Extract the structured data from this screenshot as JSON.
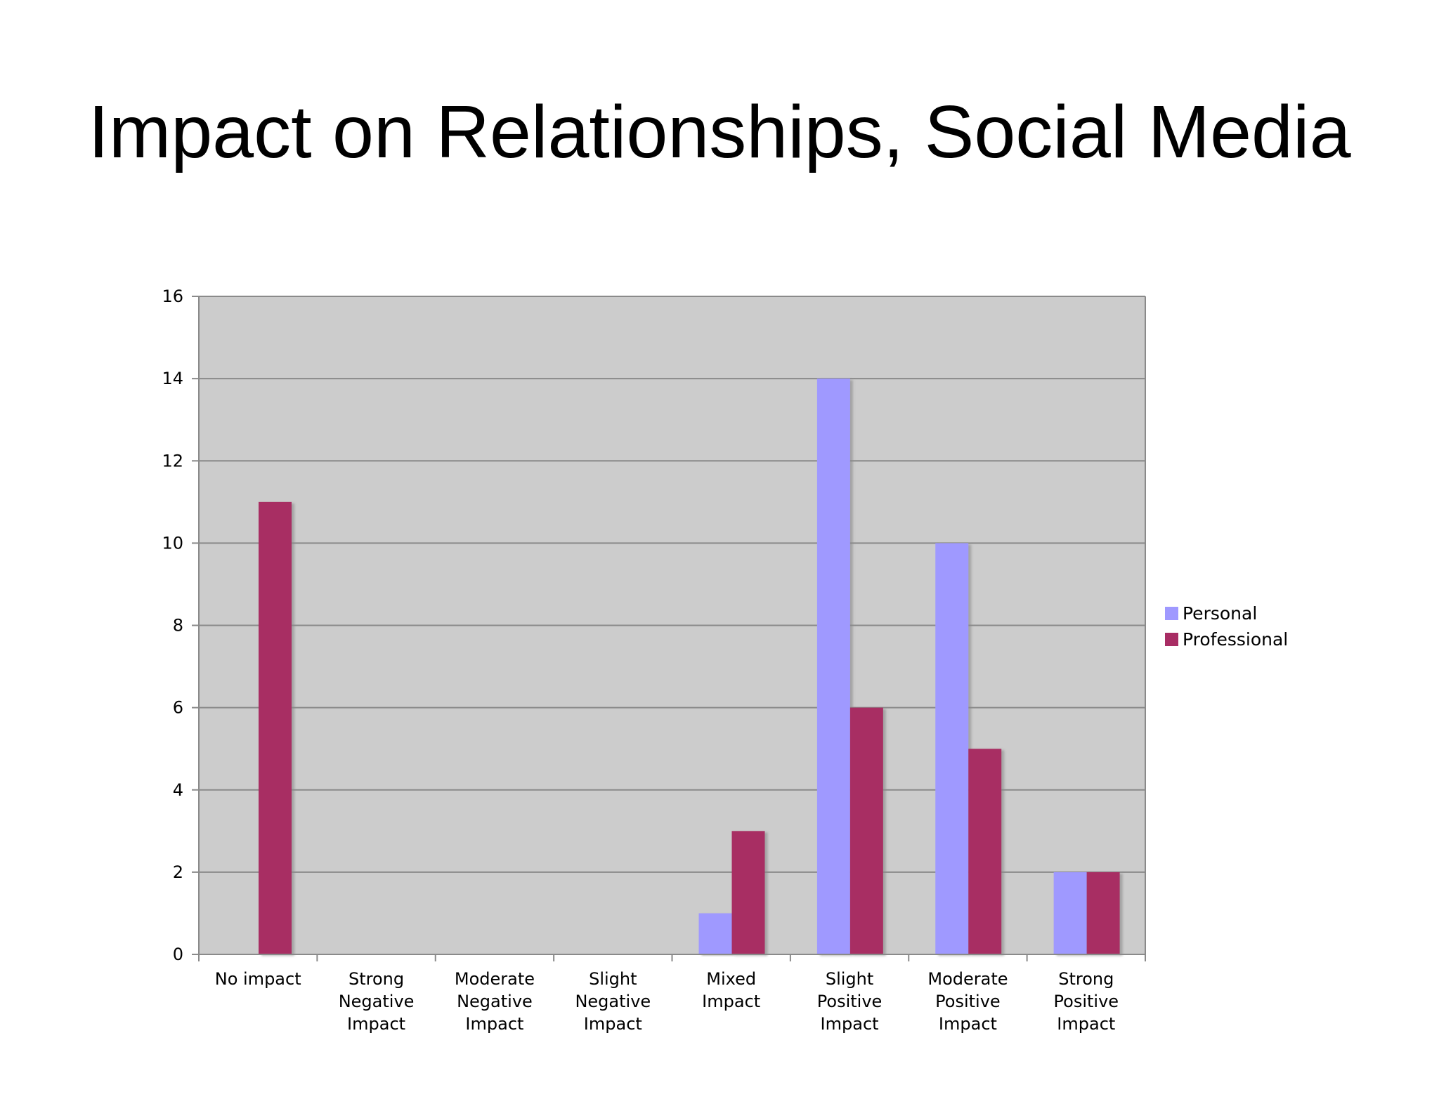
{
  "slide": {
    "title": "Impact on Relationships, Social Media"
  },
  "chart_data": {
    "type": "bar",
    "title": "",
    "xlabel": "",
    "ylabel": "",
    "ylim": [
      0,
      16
    ],
    "yticks": [
      0,
      2,
      4,
      6,
      8,
      10,
      12,
      14,
      16
    ],
    "grid": true,
    "legend_position": "right",
    "plot_background": "#cccccc",
    "categories": [
      [
        "No impact"
      ],
      [
        "Strong",
        "Negative",
        "Impact"
      ],
      [
        "Moderate",
        "Negative",
        "Impact"
      ],
      [
        "Slight",
        "Negative",
        "Impact"
      ],
      [
        "Mixed",
        "Impact"
      ],
      [
        "Slight",
        "Positive",
        "Impact"
      ],
      [
        "Moderate",
        "Positive",
        "Impact"
      ],
      [
        "Strong",
        "Positive",
        "Impact"
      ]
    ],
    "series": [
      {
        "name": "Personal",
        "color": "#9f99ff",
        "values": [
          0,
          0,
          0,
          0,
          1,
          14,
          10,
          2
        ]
      },
      {
        "name": "Professional",
        "color": "#a82d64",
        "values": [
          11,
          0,
          0,
          0,
          3,
          6,
          5,
          2
        ]
      }
    ]
  }
}
